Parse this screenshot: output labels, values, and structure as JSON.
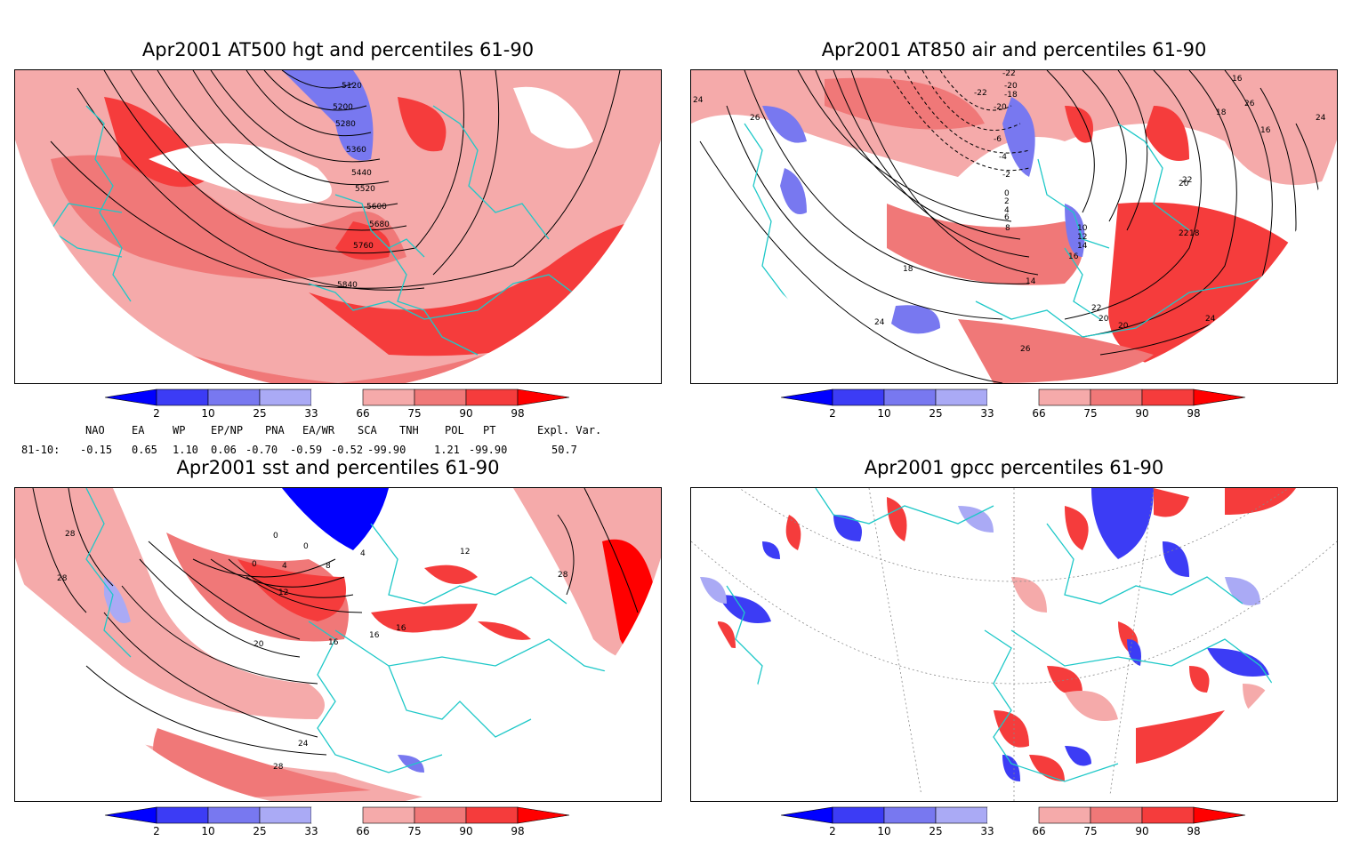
{
  "panels": [
    {
      "title": "Apr2001 AT500 hgt and percentiles 61-90",
      "contour_labels": [
        "5120",
        "5200",
        "5280",
        "5360",
        "5440",
        "5520",
        "5600",
        "5680",
        "5760",
        "5840"
      ]
    },
    {
      "title": "Apr2001 AT850 air and percentiles 61-90",
      "contour_labels": [
        "-22",
        "-20",
        "-18",
        "-22",
        "-20",
        "-6",
        "-4",
        "-2",
        "0",
        "2",
        "4",
        "6",
        "8",
        "10",
        "12",
        "14",
        "16",
        "18",
        "14",
        "16",
        "18",
        "20",
        "22",
        "24",
        "26",
        "16",
        "24",
        "22",
        "18",
        "24",
        "26",
        "20",
        "20",
        "22",
        "24",
        "26"
      ]
    },
    {
      "title": "Apr2001 sst and percentiles 61-90",
      "contour_labels": [
        "28",
        "28",
        "0",
        "0",
        "4",
        "8",
        "4",
        "0",
        "12",
        "12",
        "16",
        "16",
        "16",
        "20",
        "24",
        "28",
        "28"
      ]
    },
    {
      "title": "Apr2001 gpcc percentiles 61-90",
      "contour_labels": []
    }
  ],
  "colorbar": {
    "labels": [
      "2",
      "10",
      "25",
      "33",
      "66",
      "75",
      "90",
      "98"
    ],
    "colors": {
      "c2": "#0000ff",
      "c10": "#3c3cf5",
      "c25": "#7878f0",
      "c33": "#aaaaf5",
      "c66": "#f5aaaa",
      "c75": "#f07878",
      "c90": "#f53c3c",
      "c98": "#ff0000"
    }
  },
  "teleconnections": {
    "header": [
      "NAO",
      "EA",
      "WP",
      "EP/NP",
      "PNA",
      "EA/WR",
      "SCA",
      "TNH",
      "POL",
      "PT",
      "Expl. Var."
    ],
    "row_label": "81-10:",
    "values": [
      "-0.15",
      "0.65",
      "1.10",
      "0.06",
      "-0.70",
      "-0.59",
      "-0.52",
      "-99.90",
      "1.21",
      "-99.90",
      "50.7"
    ]
  },
  "colors": {
    "coast": "#1ec8c8",
    "contour": "#000000",
    "grid": "#888888"
  }
}
